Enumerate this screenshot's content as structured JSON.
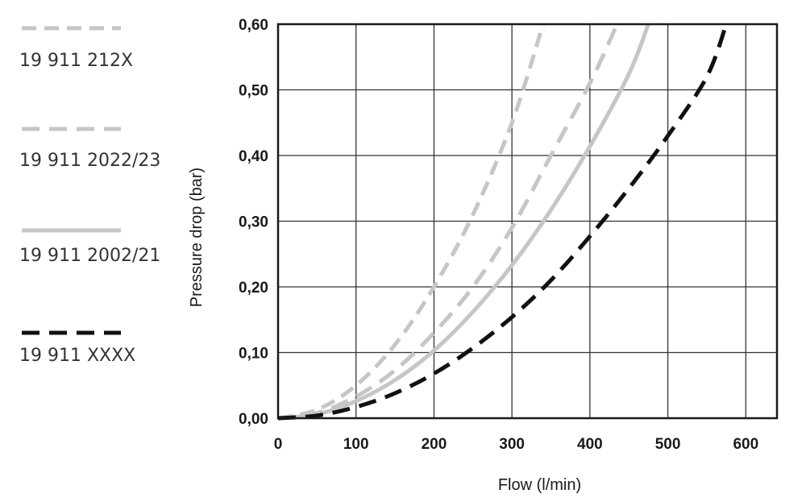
{
  "chart_data": {
    "type": "line",
    "xlabel": "Flow (l/min)",
    "ylabel": "Pressure drop (bar)",
    "xlim": [
      0,
      640
    ],
    "ylim": [
      0,
      0.6
    ],
    "x_ticks": [
      0,
      100,
      200,
      300,
      400,
      500,
      600
    ],
    "y_ticks": [
      0,
      0.1,
      0.2,
      0.3,
      0.4,
      0.5,
      0.6
    ],
    "x_tick_labels": [
      "0",
      "100",
      "200",
      "300",
      "400",
      "500",
      "600"
    ],
    "y_tick_labels": [
      "0,00",
      "0,10",
      "0,20",
      "0,30",
      "0,40",
      "0,50",
      "0,60"
    ],
    "grid": true,
    "legend_position": "left",
    "series": [
      {
        "name": "19 911 212X",
        "color": "#c6c6c6",
        "style": "dash-dot",
        "points": [
          [
            0,
            0
          ],
          [
            50,
            0.013
          ],
          [
            100,
            0.05
          ],
          [
            150,
            0.112
          ],
          [
            200,
            0.2
          ],
          [
            250,
            0.31
          ],
          [
            300,
            0.45
          ],
          [
            340,
            0.6
          ]
        ]
      },
      {
        "name": "19 911 2022/23",
        "color": "#c6c6c6",
        "style": "dashed",
        "points": [
          [
            0,
            0
          ],
          [
            50,
            0.008
          ],
          [
            100,
            0.033
          ],
          [
            150,
            0.073
          ],
          [
            200,
            0.13
          ],
          [
            250,
            0.2
          ],
          [
            300,
            0.29
          ],
          [
            350,
            0.4
          ],
          [
            400,
            0.51
          ],
          [
            435,
            0.6
          ]
        ]
      },
      {
        "name": "19 911 2002/21",
        "color": "#c6c6c6",
        "style": "solid",
        "points": [
          [
            0,
            0
          ],
          [
            50,
            0.006
          ],
          [
            100,
            0.026
          ],
          [
            150,
            0.058
          ],
          [
            200,
            0.103
          ],
          [
            250,
            0.162
          ],
          [
            300,
            0.233
          ],
          [
            350,
            0.317
          ],
          [
            400,
            0.414
          ],
          [
            450,
            0.524
          ],
          [
            475,
            0.6
          ]
        ]
      },
      {
        "name": "19 911 XXXX",
        "color": "#111111",
        "style": "dashed",
        "points": [
          [
            0,
            0
          ],
          [
            50,
            0.004
          ],
          [
            100,
            0.017
          ],
          [
            150,
            0.038
          ],
          [
            200,
            0.068
          ],
          [
            250,
            0.107
          ],
          [
            300,
            0.154
          ],
          [
            350,
            0.21
          ],
          [
            400,
            0.277
          ],
          [
            450,
            0.35
          ],
          [
            500,
            0.43
          ],
          [
            550,
            0.52
          ],
          [
            575,
            0.6
          ]
        ]
      }
    ]
  }
}
